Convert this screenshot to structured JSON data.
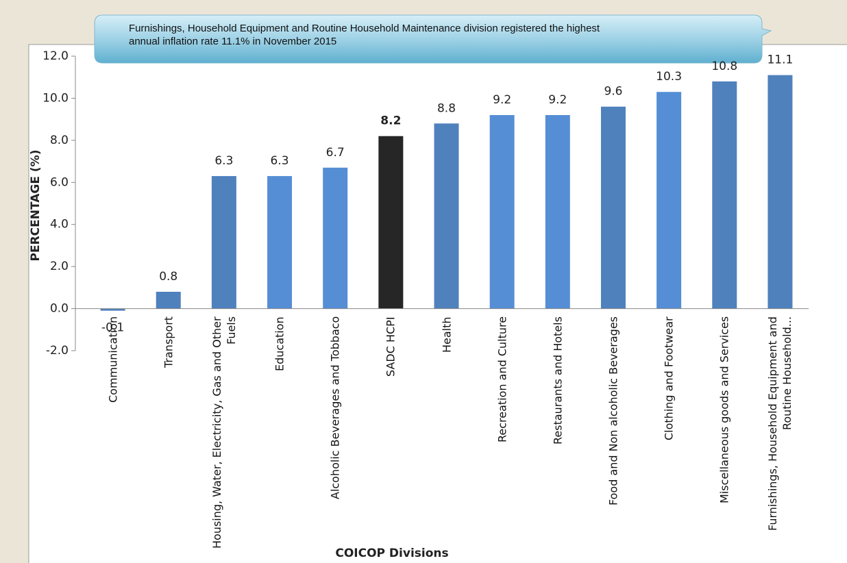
{
  "chart_data": {
    "type": "bar",
    "annotation": "Furnishings, Household Equipment and Routine Household Maintenance division registered the highest annual inflation rate 11.1% in November 2015",
    "x_label": "COICOP Divisions",
    "y_label": "PERCENTAGE (%)",
    "categories": [
      "Communication",
      "Transport",
      "Housing, Water, Electricity, Gas and Other Fuels",
      "Education",
      "Alcoholic Beverages and Tobbaco",
      "SADC HCPI",
      "Health",
      "Recreation and Culture",
      "Restaurants and Hotels",
      "Food and Non alcoholic Beverages",
      "Clothing and Footwear",
      "Miscellaneous goods and Services",
      "Furnishings, Household Equipment and Routine Household..."
    ],
    "values": [
      -0.1,
      0.8,
      6.3,
      6.3,
      6.7,
      8.2,
      8.8,
      9.2,
      9.2,
      9.6,
      10.3,
      10.8,
      11.1
    ],
    "colors": [
      "#4f81bd",
      "#4f81bd",
      "#4f81bd",
      "#558ed5",
      "#558ed5",
      "#262626",
      "#4f81bd",
      "#558ed5",
      "#558ed5",
      "#4f81bd",
      "#558ed5",
      "#4f81bd",
      "#4f81bd"
    ],
    "bold_labels": [
      false,
      false,
      false,
      false,
      false,
      true,
      false,
      false,
      false,
      false,
      false,
      false,
      false
    ],
    "ylim": [
      -2,
      12
    ],
    "yticks": [
      {
        "value": -2,
        "label": "-2.0"
      },
      {
        "value": 0,
        "label": "0.0"
      },
      {
        "value": 2,
        "label": "2.0"
      },
      {
        "value": 4,
        "label": "4.0"
      },
      {
        "value": 6,
        "label": "6.0"
      },
      {
        "value": 8,
        "label": "8.0"
      },
      {
        "value": 10,
        "label": "10.0"
      },
      {
        "value": 12,
        "label": "12.0"
      }
    ],
    "grid": false
  }
}
